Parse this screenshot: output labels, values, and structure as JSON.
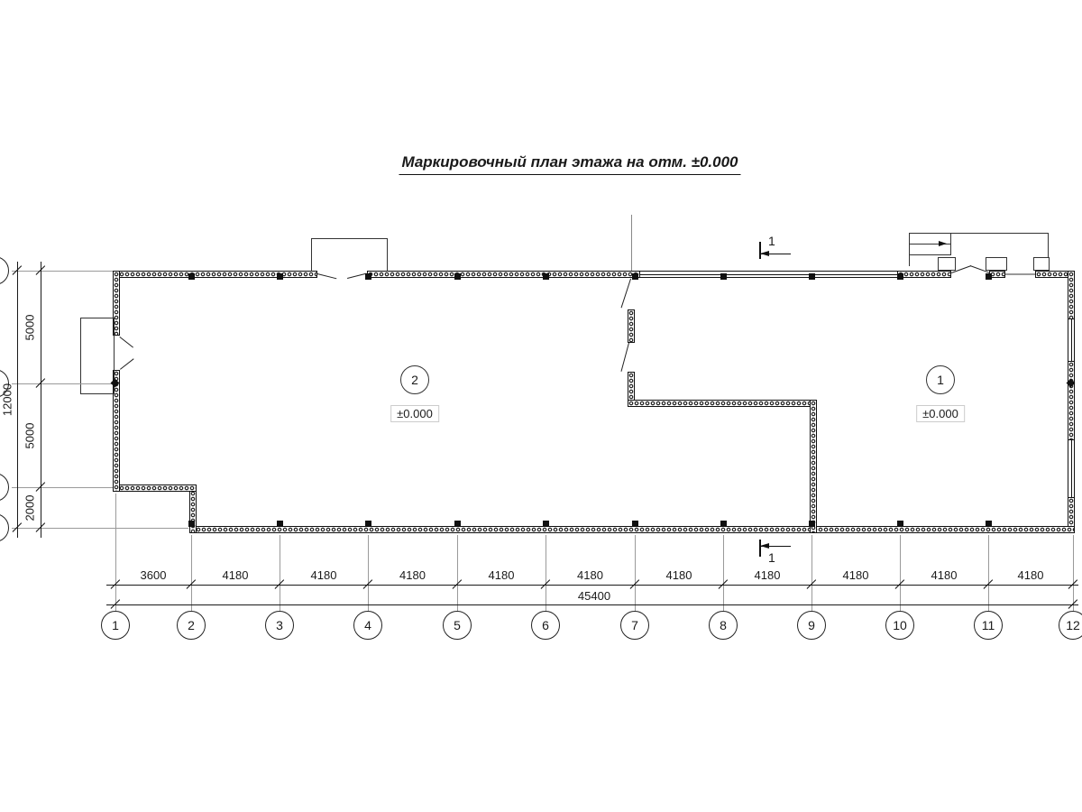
{
  "title": "Маркировочный план этажа на отм. ±0.000",
  "section": {
    "label": "1"
  },
  "rooms": [
    {
      "number": "2",
      "elevation": "±0.000"
    },
    {
      "number": "1",
      "elevation": "±0.000"
    }
  ],
  "grid": {
    "col_labels": [
      "1",
      "2",
      "3",
      "4",
      "5",
      "6",
      "7",
      "8",
      "9",
      "10",
      "11",
      "12"
    ],
    "col_dims": [
      "3600",
      "4180",
      "4180",
      "4180",
      "4180",
      "4180",
      "4180",
      "4180",
      "4180",
      "4180",
      "4180"
    ],
    "col_total": "45400",
    "row_dims": [
      "5000",
      "5000",
      "2000"
    ],
    "row_total": "12000"
  },
  "colors": {
    "line": "#1a1a1a",
    "axis": "#9a9a9a"
  }
}
